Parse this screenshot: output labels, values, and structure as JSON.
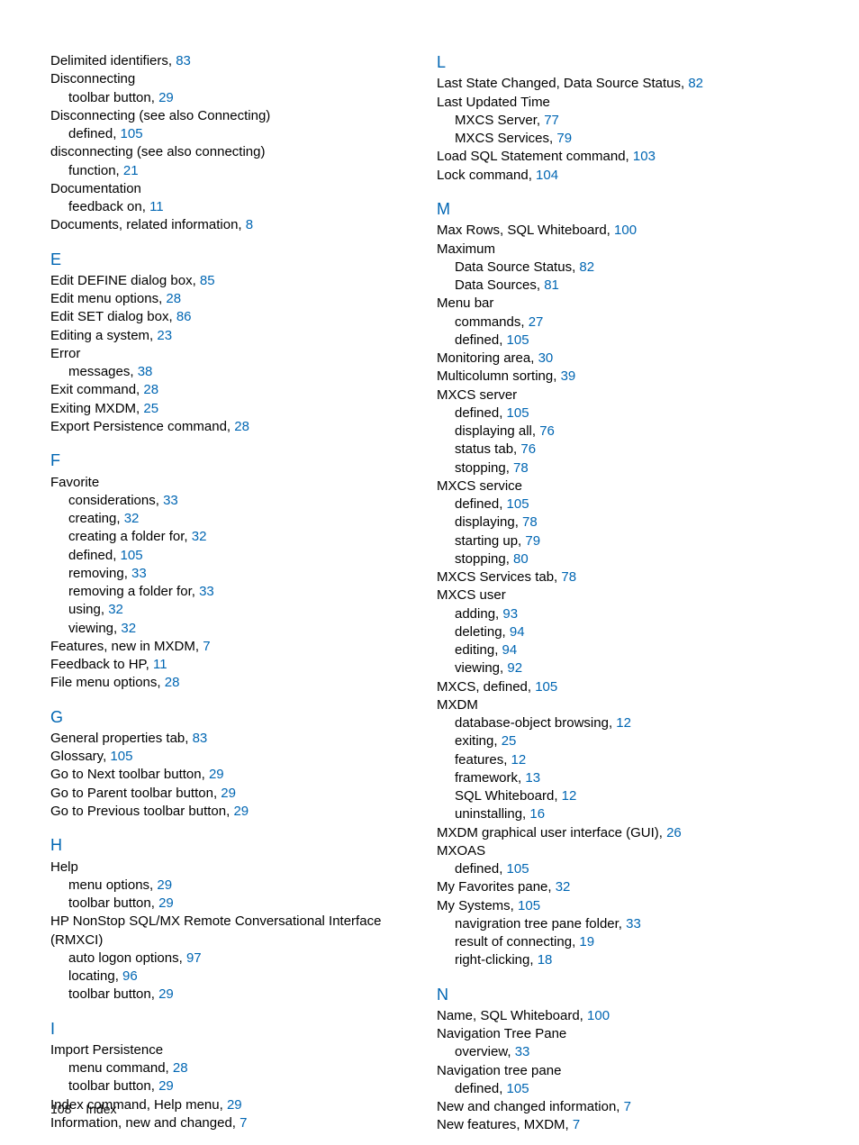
{
  "footer": {
    "page_number": "108",
    "section": "Index"
  },
  "colors": {
    "link": "#0066b3",
    "text": "#000000",
    "background": "#ffffff"
  },
  "typography": {
    "body_fontsize": 15,
    "letter_fontsize": 18,
    "line_height": 1.35
  },
  "columns": {
    "left": [
      {
        "t": "entry",
        "text": "Delimited identifiers, ",
        "page": "83"
      },
      {
        "t": "entry",
        "text": "Disconnecting"
      },
      {
        "t": "sub1",
        "text": "toolbar button, ",
        "page": "29"
      },
      {
        "t": "entry",
        "text": "Disconnecting (see also Connecting)"
      },
      {
        "t": "sub1",
        "text": "defined, ",
        "page": "105"
      },
      {
        "t": "entry",
        "text": "disconnecting (see also connecting)"
      },
      {
        "t": "sub1",
        "text": "function, ",
        "page": "21"
      },
      {
        "t": "entry",
        "text": "Documentation"
      },
      {
        "t": "sub1",
        "text": "feedback on, ",
        "page": "11"
      },
      {
        "t": "entry",
        "text": "Documents, related information, ",
        "page": "8"
      },
      {
        "t": "letter",
        "text": "E"
      },
      {
        "t": "entry",
        "text": "Edit DEFINE dialog box, ",
        "page": "85"
      },
      {
        "t": "entry",
        "text": "Edit menu options, ",
        "page": "28"
      },
      {
        "t": "entry",
        "text": "Edit SET dialog box, ",
        "page": "86"
      },
      {
        "t": "entry",
        "text": "Editing a system, ",
        "page": "23"
      },
      {
        "t": "entry",
        "text": "Error"
      },
      {
        "t": "sub1",
        "text": "messages, ",
        "page": "38"
      },
      {
        "t": "entry",
        "text": "Exit command, ",
        "page": "28"
      },
      {
        "t": "entry",
        "text": "Exiting MXDM, ",
        "page": "25"
      },
      {
        "t": "entry",
        "text": "Export Persistence command, ",
        "page": "28"
      },
      {
        "t": "letter",
        "text": "F"
      },
      {
        "t": "entry",
        "text": "Favorite"
      },
      {
        "t": "sub1",
        "text": "considerations, ",
        "page": "33"
      },
      {
        "t": "sub1",
        "text": "creating, ",
        "page": "32"
      },
      {
        "t": "sub1",
        "text": "creating a folder for, ",
        "page": "32"
      },
      {
        "t": "sub1",
        "text": "defined, ",
        "page": "105"
      },
      {
        "t": "sub1",
        "text": "removing, ",
        "page": "33"
      },
      {
        "t": "sub1",
        "text": "removing a folder for, ",
        "page": "33"
      },
      {
        "t": "sub1",
        "text": "using, ",
        "page": "32"
      },
      {
        "t": "sub1",
        "text": "viewing, ",
        "page": "32"
      },
      {
        "t": "entry",
        "text": "Features, new in MXDM, ",
        "page": "7"
      },
      {
        "t": "entry",
        "text": "Feedback to HP, ",
        "page": "11"
      },
      {
        "t": "entry",
        "text": "File menu options, ",
        "page": "28"
      },
      {
        "t": "letter",
        "text": "G"
      },
      {
        "t": "entry",
        "text": "General properties tab, ",
        "page": "83"
      },
      {
        "t": "entry",
        "text": "Glossary, ",
        "page": "105"
      },
      {
        "t": "entry",
        "text": "Go to Next toolbar button, ",
        "page": "29"
      },
      {
        "t": "entry",
        "text": "Go to Parent toolbar button, ",
        "page": "29"
      },
      {
        "t": "entry",
        "text": "Go to Previous toolbar button, ",
        "page": "29"
      },
      {
        "t": "letter",
        "text": "H"
      },
      {
        "t": "entry",
        "text": "Help"
      },
      {
        "t": "sub1",
        "text": "menu options, ",
        "page": "29"
      },
      {
        "t": "sub1",
        "text": "toolbar button, ",
        "page": "29"
      },
      {
        "t": "entry",
        "text": "HP NonStop SQL/MX Remote Conversational Interface (RMXCI)"
      },
      {
        "t": "sub1",
        "text": "auto logon options, ",
        "page": "97"
      },
      {
        "t": "sub1",
        "text": "locating, ",
        "page": "96"
      },
      {
        "t": "sub1",
        "text": "toolbar button, ",
        "page": "29"
      },
      {
        "t": "letter",
        "text": "I"
      },
      {
        "t": "entry",
        "text": "Import Persistence"
      },
      {
        "t": "sub1",
        "text": "menu command, ",
        "page": "28"
      },
      {
        "t": "sub1",
        "text": "toolbar button, ",
        "page": "29"
      },
      {
        "t": "entry",
        "text": "Index command, Help menu, ",
        "page": "29"
      },
      {
        "t": "entry",
        "text": "Information, new and changed, ",
        "page": "7"
      }
    ],
    "right": [
      {
        "t": "letter",
        "text": "L"
      },
      {
        "t": "entry",
        "text": "Last State Changed, Data Source Status, ",
        "page": "82"
      },
      {
        "t": "entry",
        "text": "Last Updated Time"
      },
      {
        "t": "sub1",
        "text": "MXCS Server, ",
        "page": "77"
      },
      {
        "t": "sub1",
        "text": "MXCS Services, ",
        "page": "79"
      },
      {
        "t": "entry",
        "text": "Load SQL Statement command, ",
        "page": "103"
      },
      {
        "t": "entry",
        "text": "Lock command, ",
        "page": "104"
      },
      {
        "t": "letter",
        "text": "M"
      },
      {
        "t": "entry",
        "text": "Max Rows, SQL Whiteboard, ",
        "page": "100"
      },
      {
        "t": "entry",
        "text": "Maximum"
      },
      {
        "t": "sub1",
        "text": "Data Source Status, ",
        "page": "82"
      },
      {
        "t": "sub1",
        "text": "Data Sources, ",
        "page": "81"
      },
      {
        "t": "entry",
        "text": "Menu bar"
      },
      {
        "t": "sub1",
        "text": "commands, ",
        "page": "27"
      },
      {
        "t": "sub1",
        "text": "defined, ",
        "page": "105"
      },
      {
        "t": "entry",
        "text": "Monitoring area, ",
        "page": "30"
      },
      {
        "t": "entry",
        "text": "Multicolumn sorting, ",
        "page": "39"
      },
      {
        "t": "entry",
        "text": "MXCS server"
      },
      {
        "t": "sub1",
        "text": "defined, ",
        "page": "105"
      },
      {
        "t": "sub1",
        "text": "displaying all, ",
        "page": "76"
      },
      {
        "t": "sub1",
        "text": "status tab, ",
        "page": "76"
      },
      {
        "t": "sub1",
        "text": "stopping, ",
        "page": "78"
      },
      {
        "t": "entry",
        "text": "MXCS service"
      },
      {
        "t": "sub1",
        "text": "defined, ",
        "page": "105"
      },
      {
        "t": "sub1",
        "text": "displaying, ",
        "page": "78"
      },
      {
        "t": "sub1",
        "text": "starting up, ",
        "page": "79"
      },
      {
        "t": "sub1",
        "text": "stopping, ",
        "page": "80"
      },
      {
        "t": "entry",
        "text": "MXCS Services tab, ",
        "page": "78"
      },
      {
        "t": "entry",
        "text": "MXCS user"
      },
      {
        "t": "sub1",
        "text": "adding, ",
        "page": "93"
      },
      {
        "t": "sub1",
        "text": "deleting, ",
        "page": "94"
      },
      {
        "t": "sub1",
        "text": "editing, ",
        "page": "94"
      },
      {
        "t": "sub1",
        "text": "viewing, ",
        "page": "92"
      },
      {
        "t": "entry",
        "text": "MXCS, defined, ",
        "page": "105"
      },
      {
        "t": "entry",
        "text": "MXDM"
      },
      {
        "t": "sub1",
        "text": "database-object browsing, ",
        "page": "12"
      },
      {
        "t": "sub1",
        "text": "exiting, ",
        "page": "25"
      },
      {
        "t": "sub1",
        "text": "features, ",
        "page": "12"
      },
      {
        "t": "sub1",
        "text": "framework, ",
        "page": "13"
      },
      {
        "t": "sub1",
        "text": "SQL Whiteboard, ",
        "page": "12"
      },
      {
        "t": "sub1",
        "text": "uninstalling, ",
        "page": "16"
      },
      {
        "t": "entry",
        "text": "MXDM graphical user interface (GUI), ",
        "page": "26"
      },
      {
        "t": "entry",
        "text": "MXOAS"
      },
      {
        "t": "sub1",
        "text": "defined, ",
        "page": "105"
      },
      {
        "t": "entry",
        "text": "My Favorites pane, ",
        "page": "32"
      },
      {
        "t": "entry",
        "text": "My Systems, ",
        "page": "105"
      },
      {
        "t": "sub1",
        "text": "navigration tree pane folder, ",
        "page": "33"
      },
      {
        "t": "sub1",
        "text": "result of connecting, ",
        "page": "19"
      },
      {
        "t": "sub1",
        "text": "right-clicking, ",
        "page": "18"
      },
      {
        "t": "letter",
        "text": "N"
      },
      {
        "t": "entry",
        "text": "Name, SQL Whiteboard, ",
        "page": "100"
      },
      {
        "t": "entry",
        "text": "Navigation Tree Pane"
      },
      {
        "t": "sub1",
        "text": "overview, ",
        "page": "33"
      },
      {
        "t": "entry",
        "text": "Navigation tree pane"
      },
      {
        "t": "sub1",
        "text": "defined, ",
        "page": "105"
      },
      {
        "t": "entry",
        "text": "New and changed information, ",
        "page": "7"
      },
      {
        "t": "entry",
        "text": "New features, MXDM, ",
        "page": "7"
      }
    ]
  }
}
